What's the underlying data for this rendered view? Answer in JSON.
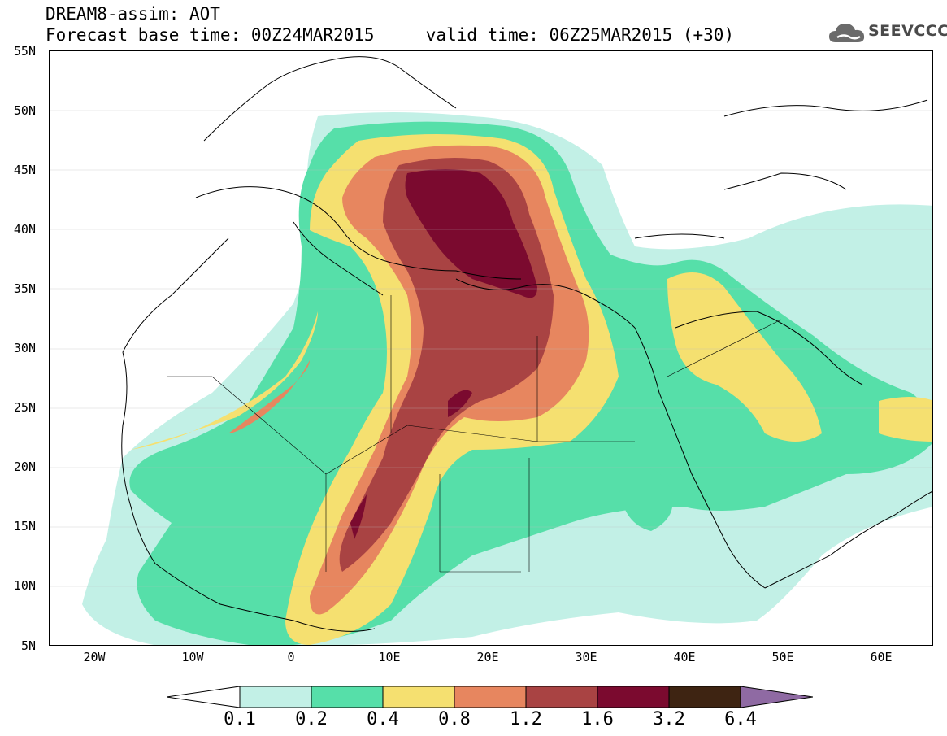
{
  "header": {
    "title_line1": "DREAM8-assim: AOT",
    "title_line2": "Forecast base time: 00Z24MAR2015     valid time: 06Z25MAR2015 (+30)",
    "logo_text": "SEEVCCC"
  },
  "map": {
    "field": "AOT",
    "lon_range": [
      -25,
      65
    ],
    "lat_range": [
      5,
      55
    ],
    "lat_labels": [
      "55N",
      "50N",
      "45N",
      "40N",
      "35N",
      "30N",
      "25N",
      "20N",
      "15N",
      "10N",
      "5N"
    ],
    "lon_labels": [
      "20W",
      "10W",
      "0",
      "10E",
      "20E",
      "30E",
      "40E",
      "50E",
      "60E"
    ],
    "border_color": "#000000"
  },
  "colorbar": {
    "labels": [
      "0.1",
      "0.2",
      "0.4",
      "0.8",
      "1.2",
      "1.6",
      "3.2",
      "6.4"
    ],
    "colors": [
      "#ffffff",
      "#c2f0e6",
      "#56dfa9",
      "#f5e070",
      "#e7865f",
      "#a94343",
      "#7b0a2f",
      "#3e2412",
      "#8f6aa3"
    ]
  }
}
